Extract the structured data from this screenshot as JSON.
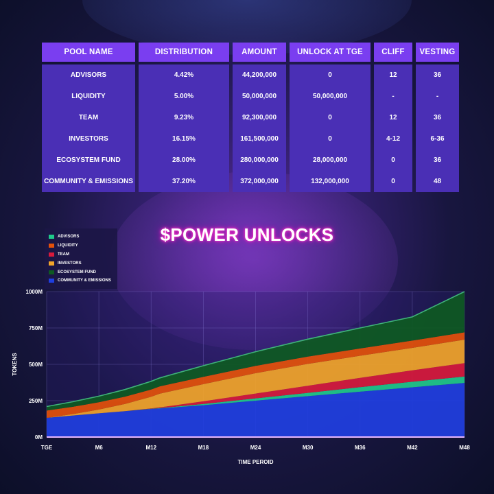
{
  "table": {
    "headers": [
      "POOL NAME",
      "DISTRIBUTION",
      "AMOUNT",
      "UNLOCK AT TGE",
      "CLIFF",
      "VESTING"
    ],
    "rows": [
      [
        "ADVISORS",
        "4.42%",
        "44,200,000",
        "0",
        "12",
        "36"
      ],
      [
        "LIQUIDITY",
        "5.00%",
        "50,000,000",
        "50,000,000",
        "-",
        "-"
      ],
      [
        "TEAM",
        "9.23%",
        "92,300,000",
        "0",
        "12",
        "36"
      ],
      [
        "INVESTORS",
        "16.15%",
        "161,500,000",
        "0",
        "4-12",
        "6-36"
      ],
      [
        "ECOSYSTEM FUND",
        "28.00%",
        "280,000,000",
        "28,000,000",
        "0",
        "36"
      ],
      [
        "COMMUNITY & EMISSIONS",
        "37.20%",
        "372,000,000",
        "132,000,000",
        "0",
        "48"
      ]
    ]
  },
  "chart_data": {
    "type": "area",
    "stacked": true,
    "title": "$POWER UNLOCKS",
    "xlabel": "TIME PEROID",
    "ylabel": "TOKENS",
    "x": [
      "TGE",
      "M3",
      "M6",
      "M9",
      "M12",
      "M13",
      "M18",
      "M24",
      "M30",
      "M36",
      "M42",
      "M48"
    ],
    "xticks": [
      "TGE",
      "M6",
      "M12",
      "M18",
      "M24",
      "M30",
      "M36",
      "M42",
      "M48"
    ],
    "yticks": [
      "0M",
      "250M",
      "500M",
      "750M",
      "1000M"
    ],
    "ylim": [
      0,
      1000
    ],
    "grid": true,
    "legend_position": "top-left",
    "series": [
      {
        "name": "COMMUNITY & EMISSIONS",
        "color": "#1f3fe0",
        "values": [
          132,
          148,
          163,
          178,
          193,
          196,
          219,
          250,
          281,
          312,
          342,
          372
        ]
      },
      {
        "name": "ADVISORS",
        "color": "#1fc98a",
        "values": [
          0,
          0,
          0,
          0,
          1.2,
          2.5,
          8.6,
          16,
          23,
          31,
          38,
          44
        ]
      },
      {
        "name": "TEAM",
        "color": "#d81a3c",
        "values": [
          0,
          0,
          0,
          0,
          2.6,
          5.1,
          18,
          33,
          49,
          64,
          79,
          92
        ]
      },
      {
        "name": "INVESTORS",
        "color": "#f2a52a",
        "values": [
          0,
          10,
          26,
          50,
          80,
          95,
          118,
          140,
          150,
          152,
          154,
          162
        ]
      },
      {
        "name": "LIQUIDITY",
        "color": "#e4510a",
        "values": [
          50,
          50,
          50,
          50,
          50,
          50,
          50,
          50,
          50,
          50,
          50,
          50
        ]
      },
      {
        "name": "ECOSYSTEM FUND",
        "color": "#0e5a22",
        "values": [
          28,
          35,
          42,
          49,
          56,
          58,
          77,
          98,
          120,
          141,
          163,
          280
        ]
      }
    ],
    "legend_order": [
      "ADVISORS",
      "LIQUIDITY",
      "TEAM",
      "INVESTORS",
      "ECOSYSTEM FUND",
      "COMMUNITY & EMISSIONS"
    ]
  }
}
